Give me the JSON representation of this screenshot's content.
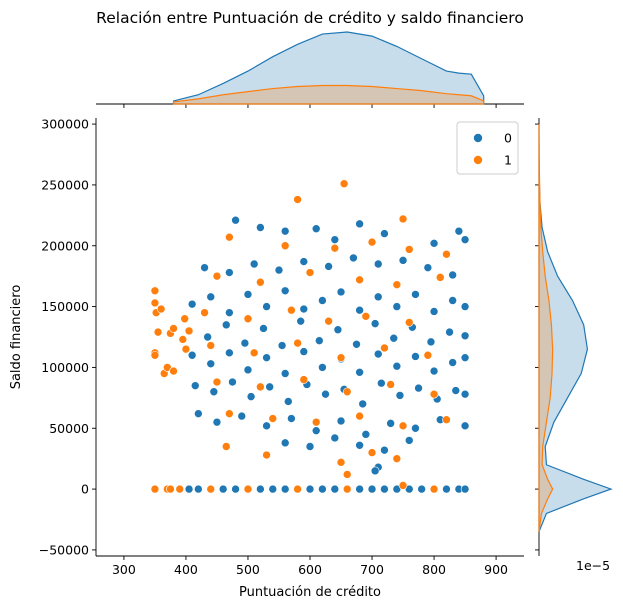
{
  "chart_data": {
    "type": "scatter",
    "title": "Relación entre Puntuación de crédito y saldo financiero",
    "xlabel": "Puntuación de crédito",
    "ylabel": "Saldo financiero",
    "xlim": [
      255,
      945
    ],
    "ylim": [
      -55000,
      305000
    ],
    "x_ticks": [
      300,
      400,
      500,
      600,
      700,
      800,
      900
    ],
    "y_ticks": [
      -50000,
      0,
      50000,
      100000,
      150000,
      200000,
      250000,
      300000
    ],
    "marginal_y_offset_label": "1e−5",
    "legend": {
      "placement": "top-right",
      "title": ""
    },
    "marginals": {
      "top": "kde",
      "right": "kde",
      "fill": true
    },
    "series": [
      {
        "name": "0",
        "color": "#1f77b4",
        "points": [
          [
            480,
            221000
          ],
          [
            520,
            215000
          ],
          [
            560,
            212000
          ],
          [
            610,
            214000
          ],
          [
            680,
            218000
          ],
          [
            720,
            210000
          ],
          [
            840,
            212000
          ],
          [
            850,
            205000
          ],
          [
            800,
            202000
          ],
          [
            640,
            205000
          ],
          [
            430,
            182000
          ],
          [
            470,
            178000
          ],
          [
            510,
            185000
          ],
          [
            550,
            180000
          ],
          [
            590,
            187000
          ],
          [
            630,
            183000
          ],
          [
            670,
            190000
          ],
          [
            710,
            185000
          ],
          [
            750,
            188000
          ],
          [
            790,
            182000
          ],
          [
            830,
            176000
          ],
          [
            410,
            152000
          ],
          [
            440,
            158000
          ],
          [
            470,
            145000
          ],
          [
            500,
            160000
          ],
          [
            530,
            150000
          ],
          [
            560,
            163000
          ],
          [
            590,
            148000
          ],
          [
            620,
            155000
          ],
          [
            650,
            162000
          ],
          [
            680,
            147000
          ],
          [
            710,
            158000
          ],
          [
            740,
            150000
          ],
          [
            770,
            160000
          ],
          [
            800,
            146000
          ],
          [
            830,
            155000
          ],
          [
            850,
            150000
          ],
          [
            405,
            130000
          ],
          [
            435,
            125000
          ],
          [
            465,
            135000
          ],
          [
            495,
            120000
          ],
          [
            525,
            132000
          ],
          [
            555,
            118000
          ],
          [
            585,
            138000
          ],
          [
            615,
            122000
          ],
          [
            645,
            131000
          ],
          [
            675,
            119000
          ],
          [
            705,
            136000
          ],
          [
            735,
            124000
          ],
          [
            765,
            133000
          ],
          [
            795,
            121000
          ],
          [
            825,
            129000
          ],
          [
            850,
            126000
          ],
          [
            410,
            110000
          ],
          [
            440,
            103000
          ],
          [
            470,
            112000
          ],
          [
            500,
            98000
          ],
          [
            530,
            108000
          ],
          [
            560,
            95000
          ],
          [
            590,
            113000
          ],
          [
            620,
            100000
          ],
          [
            650,
            107000
          ],
          [
            680,
            96000
          ],
          [
            710,
            111000
          ],
          [
            740,
            101000
          ],
          [
            770,
            109000
          ],
          [
            800,
            97000
          ],
          [
            830,
            104000
          ],
          [
            850,
            108000
          ],
          [
            415,
            85000
          ],
          [
            445,
            80000
          ],
          [
            475,
            88000
          ],
          [
            505,
            76000
          ],
          [
            535,
            84000
          ],
          [
            565,
            72000
          ],
          [
            595,
            86000
          ],
          [
            625,
            78000
          ],
          [
            655,
            82000
          ],
          [
            685,
            70000
          ],
          [
            715,
            87000
          ],
          [
            745,
            77000
          ],
          [
            775,
            83000
          ],
          [
            805,
            74000
          ],
          [
            835,
            81000
          ],
          [
            850,
            78000
          ],
          [
            420,
            62000
          ],
          [
            450,
            55000
          ],
          [
            490,
            60000
          ],
          [
            530,
            52000
          ],
          [
            570,
            58000
          ],
          [
            610,
            48000
          ],
          [
            650,
            56000
          ],
          [
            690,
            45000
          ],
          [
            730,
            54000
          ],
          [
            770,
            50000
          ],
          [
            810,
            57000
          ],
          [
            850,
            52000
          ],
          [
            560,
            38000
          ],
          [
            600,
            35000
          ],
          [
            640,
            42000
          ],
          [
            680,
            36000
          ],
          [
            720,
            32000
          ],
          [
            760,
            40000
          ],
          [
            710,
            18000
          ],
          [
            705,
            15000
          ],
          [
            405,
            0
          ],
          [
            420,
            0
          ],
          [
            440,
            0
          ],
          [
            460,
            0
          ],
          [
            480,
            0
          ],
          [
            500,
            0
          ],
          [
            520,
            0
          ],
          [
            540,
            0
          ],
          [
            560,
            0
          ],
          [
            580,
            0
          ],
          [
            600,
            0
          ],
          [
            620,
            0
          ],
          [
            640,
            0
          ],
          [
            660,
            0
          ],
          [
            680,
            0
          ],
          [
            700,
            0
          ],
          [
            720,
            0
          ],
          [
            740,
            0
          ],
          [
            760,
            0
          ],
          [
            780,
            0
          ],
          [
            800,
            0
          ],
          [
            820,
            0
          ],
          [
            840,
            0
          ],
          [
            850,
            0
          ]
        ]
      },
      {
        "name": "1",
        "color": "#ff7f0e",
        "points": [
          [
            350,
            163000
          ],
          [
            350,
            153000
          ],
          [
            352,
            145000
          ],
          [
            355,
            129000
          ],
          [
            350,
            112000
          ],
          [
            350,
            110000
          ],
          [
            365,
            95000
          ],
          [
            370,
            100000
          ],
          [
            380,
            97000
          ],
          [
            375,
            128000
          ],
          [
            380,
            132000
          ],
          [
            360,
            148000
          ],
          [
            400,
            115000
          ],
          [
            395,
            123000
          ],
          [
            398,
            140000
          ],
          [
            405,
            130000
          ],
          [
            580,
            238000
          ],
          [
            655,
            251000
          ],
          [
            750,
            222000
          ],
          [
            470,
            207000
          ],
          [
            560,
            200000
          ],
          [
            640,
            198000
          ],
          [
            700,
            203000
          ],
          [
            760,
            197000
          ],
          [
            820,
            193000
          ],
          [
            450,
            175000
          ],
          [
            520,
            170000
          ],
          [
            600,
            178000
          ],
          [
            680,
            172000
          ],
          [
            740,
            168000
          ],
          [
            810,
            174000
          ],
          [
            430,
            145000
          ],
          [
            500,
            140000
          ],
          [
            570,
            147000
          ],
          [
            630,
            138000
          ],
          [
            690,
            142000
          ],
          [
            760,
            137000
          ],
          [
            440,
            118000
          ],
          [
            510,
            112000
          ],
          [
            580,
            120000
          ],
          [
            650,
            108000
          ],
          [
            720,
            116000
          ],
          [
            790,
            110000
          ],
          [
            450,
            88000
          ],
          [
            520,
            84000
          ],
          [
            590,
            90000
          ],
          [
            660,
            80000
          ],
          [
            730,
            86000
          ],
          [
            800,
            78000
          ],
          [
            470,
            62000
          ],
          [
            540,
            58000
          ],
          [
            610,
            55000
          ],
          [
            680,
            60000
          ],
          [
            750,
            52000
          ],
          [
            820,
            57000
          ],
          [
            465,
            35000
          ],
          [
            530,
            28000
          ],
          [
            650,
            22000
          ],
          [
            660,
            12000
          ],
          [
            700,
            30000
          ],
          [
            740,
            25000
          ],
          [
            350,
            0
          ],
          [
            370,
            0
          ],
          [
            375,
            0
          ],
          [
            390,
            0
          ],
          [
            440,
            0
          ],
          [
            500,
            0
          ],
          [
            580,
            0
          ],
          [
            660,
            0
          ],
          [
            750,
            3000
          ],
          [
            800,
            0
          ]
        ]
      }
    ],
    "marginal_x_kde": {
      "x": [
        380,
        420,
        460,
        500,
        540,
        580,
        620,
        660,
        700,
        740,
        780,
        820,
        840,
        860,
        880
      ],
      "series_0": [
        0.3,
        0.9,
        2.0,
        3.2,
        4.6,
        5.8,
        6.8,
        7.0,
        6.6,
        5.6,
        4.4,
        3.2,
        3.0,
        2.9,
        0.8
      ],
      "series_1": [
        0.2,
        0.5,
        0.9,
        1.2,
        1.5,
        1.7,
        1.8,
        1.8,
        1.7,
        1.5,
        1.3,
        1.0,
        0.9,
        0.8,
        0.3
      ]
    },
    "marginal_y_kde": {
      "y": [
        -35000,
        -20000,
        -8000,
        0,
        8000,
        20000,
        35000,
        55000,
        75000,
        95000,
        115000,
        135000,
        155000,
        175000,
        195000,
        215000,
        235000,
        255000,
        275000,
        300000
      ],
      "series_0": [
        0.0,
        0.6,
        3.6,
        5.8,
        3.6,
        0.6,
        0.5,
        1.2,
        2.3,
        3.4,
        3.9,
        3.6,
        2.7,
        1.5,
        0.7,
        0.25,
        0.08,
        0.02,
        0.0,
        0.0
      ],
      "series_1": [
        0.0,
        0.2,
        0.7,
        1.1,
        0.7,
        0.25,
        0.3,
        0.6,
        0.9,
        1.05,
        1.1,
        1.0,
        0.8,
        0.5,
        0.3,
        0.15,
        0.08,
        0.04,
        0.02,
        0.0
      ]
    }
  }
}
